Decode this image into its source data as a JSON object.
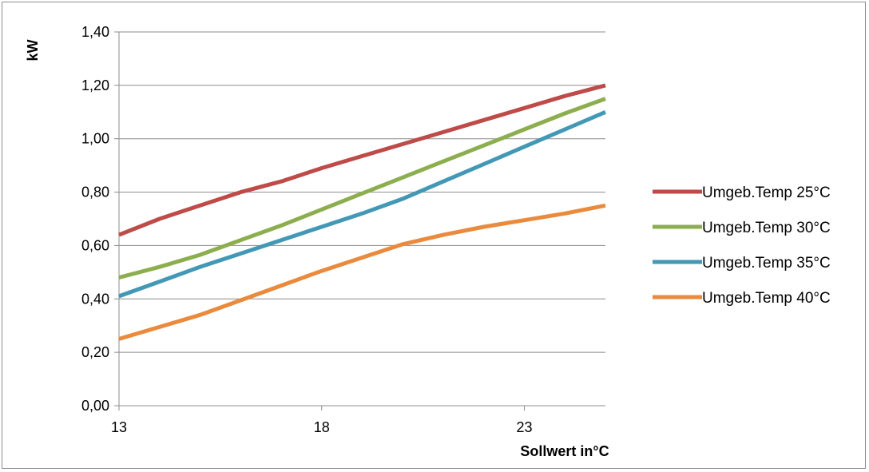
{
  "chart_data": {
    "type": "line",
    "xlabel": "Sollwert in°C",
    "ylabel": "kW",
    "x": [
      13,
      14,
      15,
      16,
      17,
      18,
      19,
      20,
      21,
      22,
      23,
      24,
      25
    ],
    "xlim": [
      13,
      25
    ],
    "ylim": [
      0,
      1.4
    ],
    "x_ticks": [
      13,
      18,
      23
    ],
    "x_tick_labels": [
      "13",
      "18",
      "23"
    ],
    "y_ticks": [
      0,
      0.2,
      0.4,
      0.6,
      0.8,
      1.0,
      1.2,
      1.4
    ],
    "y_tick_labels": [
      "0,00",
      "0,20",
      "0,40",
      "0,60",
      "0,80",
      "1,00",
      "1,20",
      "1,40"
    ],
    "grid": "horizontal",
    "legend_position": "right",
    "series": [
      {
        "name": "Umgeb.Temp 25°C",
        "color": "#be4b48",
        "values": [
          0.64,
          0.7,
          0.75,
          0.8,
          0.84,
          0.89,
          0.935,
          0.98,
          1.025,
          1.07,
          1.115,
          1.16,
          1.2
        ]
      },
      {
        "name": "Umgeb.Temp 30°C",
        "color": "#8cae4f",
        "values": [
          0.48,
          0.52,
          0.565,
          0.62,
          0.675,
          0.735,
          0.795,
          0.855,
          0.915,
          0.975,
          1.035,
          1.095,
          1.15
        ]
      },
      {
        "name": "Umgeb.Temp 35°C",
        "color": "#4298b5",
        "values": [
          0.41,
          0.465,
          0.52,
          0.57,
          0.62,
          0.67,
          0.72,
          0.775,
          0.84,
          0.905,
          0.97,
          1.035,
          1.1
        ]
      },
      {
        "name": "Umgeb.Temp 40°C",
        "color": "#ea8a3c",
        "values": [
          0.25,
          0.295,
          0.34,
          0.395,
          0.45,
          0.505,
          0.555,
          0.605,
          0.64,
          0.67,
          0.695,
          0.72,
          0.75
        ]
      }
    ]
  }
}
